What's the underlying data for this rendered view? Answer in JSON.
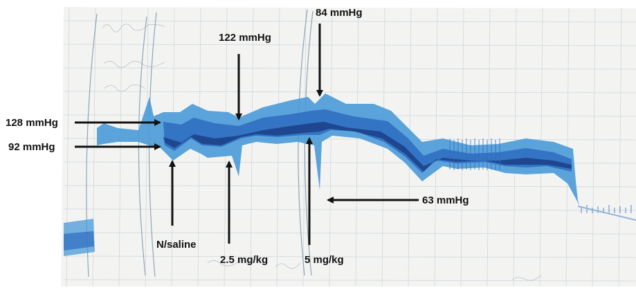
{
  "colors": {
    "paper": "#f4f5f3",
    "grid": "#cfd6dc",
    "trace_dark": "#1c3f86",
    "trace_mid": "#2e6cc0",
    "trace_light": "#4a9ad8",
    "arrow": "#111111"
  },
  "annotations": {
    "systolic_baseline": "128 mmHg",
    "diastolic_baseline": "92 mmHg",
    "after_low_dose": "122 mmHg",
    "after_high_dose_peak": "84 mmHg",
    "after_high_dose_low": "63 mmHg",
    "saline_marker": "N/saline",
    "low_dose_marker": "2.5 mg/kg",
    "high_dose_marker": "5 mg/kg"
  }
}
